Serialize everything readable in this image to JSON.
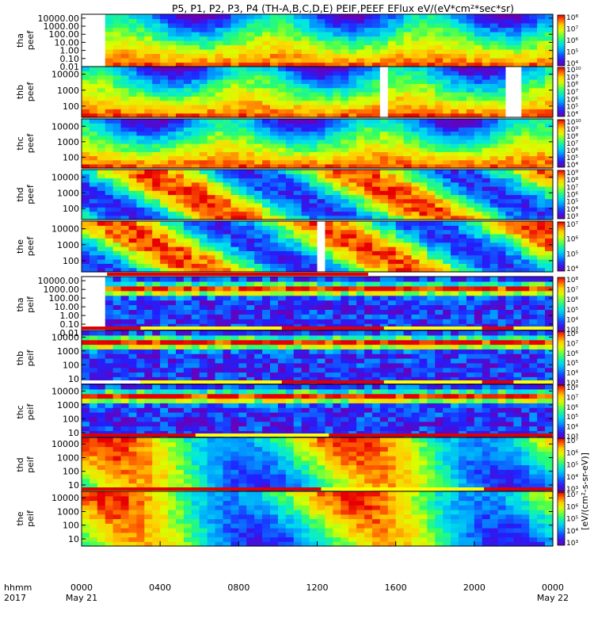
{
  "title": "P5, P1, P2, P3, P4 (TH-A,B,C,D,E) PEIF,PEEF EFlux eV/(eV*cm²*sec*sr)",
  "chart_data": {
    "type": "heatmap",
    "title": "P5, P1, P2, P3, P4 (TH-A,B,C,D,E) PEIF,PEEF EFlux eV/(eV*cm²*sec*sr)",
    "x_ticks": [
      {
        "label": "0000",
        "sub": "May 21",
        "hour": 0
      },
      {
        "label": "0400",
        "sub": "",
        "hour": 4
      },
      {
        "label": "0800",
        "sub": "",
        "hour": 8
      },
      {
        "label": "1200",
        "sub": "",
        "hour": 12
      },
      {
        "label": "1600",
        "sub": "",
        "hour": 16
      },
      {
        "label": "2000",
        "sub": "",
        "hour": 20
      },
      {
        "label": "0000",
        "sub": "May 22",
        "hour": 24
      }
    ],
    "x_label": "hhmm",
    "x_sublabel": "2017",
    "xlim": [
      0,
      24
    ],
    "log_y": true,
    "colorbar_label": "[eV/(cm²-s-sr-eV)]",
    "panels": [
      {
        "name1": "tha",
        "name2": "peef",
        "species": "electron",
        "ytick_labels": [
          "10000.00",
          "1000.00",
          "100.00",
          "10.00",
          "1.00",
          "0.10",
          "0.01"
        ],
        "ytick_values": [
          10000,
          1000,
          100,
          10,
          1,
          0.1,
          0.01
        ],
        "ylim": [
          0.01,
          30000
        ],
        "cbar_labels": [
          "10⁸",
          "10⁷",
          "10⁶",
          "10⁵",
          "10⁴"
        ],
        "cbar_values": [
          8,
          7,
          6,
          5,
          4
        ],
        "data_start_hour": 1.3
      },
      {
        "name1": "thb",
        "name2": "peef",
        "species": "electron",
        "ytick_labels": [
          "10000",
          "1000",
          "100"
        ],
        "ytick_values": [
          10000,
          1000,
          100
        ],
        "ylim": [
          20,
          30000
        ],
        "cbar_labels": [
          "10¹⁰",
          "10⁹",
          "10⁸",
          "10⁷",
          "10⁶",
          "10⁵",
          "10⁴"
        ],
        "cbar_values": [
          10,
          9,
          8,
          7,
          6,
          5,
          4
        ],
        "gaps_hour": [
          15.3,
          22.0
        ]
      },
      {
        "name1": "thc",
        "name2": "peef",
        "species": "electron",
        "ytick_labels": [
          "10000",
          "1000",
          "100"
        ],
        "ytick_values": [
          10000,
          1000,
          100
        ],
        "ylim": [
          20,
          30000
        ],
        "cbar_labels": [
          "10¹⁰",
          "10⁹",
          "10⁸",
          "10⁷",
          "10⁶",
          "10⁵",
          "10⁴"
        ],
        "cbar_values": [
          10,
          9,
          8,
          7,
          6,
          5,
          4
        ]
      },
      {
        "name1": "thd",
        "name2": "peef",
        "species": "electron",
        "ytick_labels": [
          "10000",
          "1000",
          "100"
        ],
        "ytick_values": [
          10000,
          1000,
          100
        ],
        "ylim": [
          20,
          30000
        ],
        "cbar_labels": [
          "10⁹",
          "10⁸",
          "10⁷",
          "10⁶",
          "10⁵",
          "10⁴",
          "10³"
        ],
        "cbar_values": [
          9,
          8,
          7,
          6,
          5,
          4,
          3
        ]
      },
      {
        "name1": "the",
        "name2": "peef",
        "species": "electron",
        "ytick_labels": [
          "10000",
          "1000",
          "100"
        ],
        "ytick_values": [
          10000,
          1000,
          100
        ],
        "ylim": [
          20,
          30000
        ],
        "cbar_labels": [
          "10⁷",
          "10⁶",
          "10⁵",
          "10⁴"
        ],
        "cbar_values": [
          7,
          6,
          5,
          4
        ],
        "gaps_hour": [
          12.3
        ]
      },
      {
        "name1": "tha",
        "name2": "peif",
        "species": "ion",
        "ytick_labels": [
          "10000.00",
          "1000.00",
          "100.00",
          "10.00",
          "1.00",
          "0.10",
          "0.01"
        ],
        "ytick_values": [
          10000,
          1000,
          100,
          10,
          1,
          0.1,
          0.01
        ],
        "ylim": [
          0.01,
          30000
        ],
        "cbar_labels": [
          "10⁸",
          "10⁷",
          "10⁶",
          "10⁵",
          "10⁴",
          "10³"
        ],
        "cbar_values": [
          8,
          7,
          6,
          5,
          4,
          3
        ],
        "data_start_hour": 1.3
      },
      {
        "name1": "thb",
        "name2": "peif",
        "species": "ion",
        "ytick_labels": [
          "10000",
          "1000",
          "100",
          "10"
        ],
        "ytick_values": [
          10000,
          1000,
          100,
          10
        ],
        "ylim": [
          3,
          30000
        ],
        "cbar_labels": [
          "10⁸",
          "10⁷",
          "10⁶",
          "10⁵",
          "10⁴",
          "10³"
        ],
        "cbar_values": [
          8,
          7,
          6,
          5,
          4,
          3
        ]
      },
      {
        "name1": "thc",
        "name2": "peif",
        "species": "ion",
        "ytick_labels": [
          "10000",
          "1000",
          "100",
          "10"
        ],
        "ytick_values": [
          10000,
          1000,
          100,
          10
        ],
        "ylim": [
          3,
          30000
        ],
        "cbar_labels": [
          "10⁸",
          "10⁷",
          "10⁶",
          "10⁵",
          "10⁴",
          "10³"
        ],
        "cbar_values": [
          8,
          7,
          6,
          5,
          4,
          3
        ]
      },
      {
        "name1": "thd",
        "name2": "peif",
        "species": "ion",
        "ytick_labels": [
          "10000",
          "1000",
          "100",
          "10"
        ],
        "ytick_values": [
          10000,
          1000,
          100,
          10
        ],
        "ylim": [
          3,
          30000
        ],
        "cbar_labels": [
          "10⁷",
          "10⁶",
          "10⁵",
          "10⁴",
          "10³"
        ],
        "cbar_values": [
          7,
          6,
          5,
          4,
          3
        ]
      },
      {
        "name1": "the",
        "name2": "peif",
        "species": "ion",
        "ytick_labels": [
          "10000",
          "1000",
          "100",
          "10"
        ],
        "ytick_values": [
          10000,
          1000,
          100,
          10
        ],
        "ylim": [
          3,
          30000
        ],
        "cbar_labels": [
          "10⁷",
          "10⁶",
          "10⁵",
          "10⁴",
          "10³"
        ],
        "cbar_values": [
          7,
          6,
          5,
          4,
          3
        ]
      }
    ],
    "mode_bars": [
      {
        "above_panel": 5,
        "segments": [
          [
            1.3,
            14.6,
            "#e00000"
          ],
          [
            14.6,
            24,
            "#ffffff"
          ]
        ]
      },
      {
        "above_panel": 6,
        "segments": [
          [
            0,
            3.0,
            "#e00000"
          ],
          [
            3.0,
            10.2,
            "#ffff00"
          ],
          [
            10.2,
            15.4,
            "#e00000"
          ],
          [
            15.4,
            20.4,
            "#ffff00"
          ],
          [
            20.4,
            22.0,
            "#e00000"
          ],
          [
            22.0,
            24,
            "#ffff00"
          ]
        ]
      },
      {
        "above_panel": 7,
        "segments": [
          [
            0,
            3.0,
            "#ffffff"
          ],
          [
            3.0,
            10.2,
            "#ffff00"
          ],
          [
            10.2,
            15.4,
            "#e00000"
          ],
          [
            15.4,
            20.4,
            "#ffff00"
          ],
          [
            20.4,
            22.0,
            "#e00000"
          ],
          [
            22.0,
            24,
            "#ffff00"
          ]
        ]
      },
      {
        "above_panel": 8,
        "segments": [
          [
            0,
            5.8,
            "#e00000"
          ],
          [
            5.8,
            12.6,
            "#ffff00"
          ],
          [
            12.6,
            24,
            "#e00000"
          ]
        ]
      },
      {
        "above_panel": 9,
        "segments": [
          [
            0,
            12.2,
            "#e00000"
          ],
          [
            12.2,
            20.5,
            "#ffff00"
          ],
          [
            20.5,
            24,
            "#e00000"
          ]
        ]
      }
    ]
  }
}
